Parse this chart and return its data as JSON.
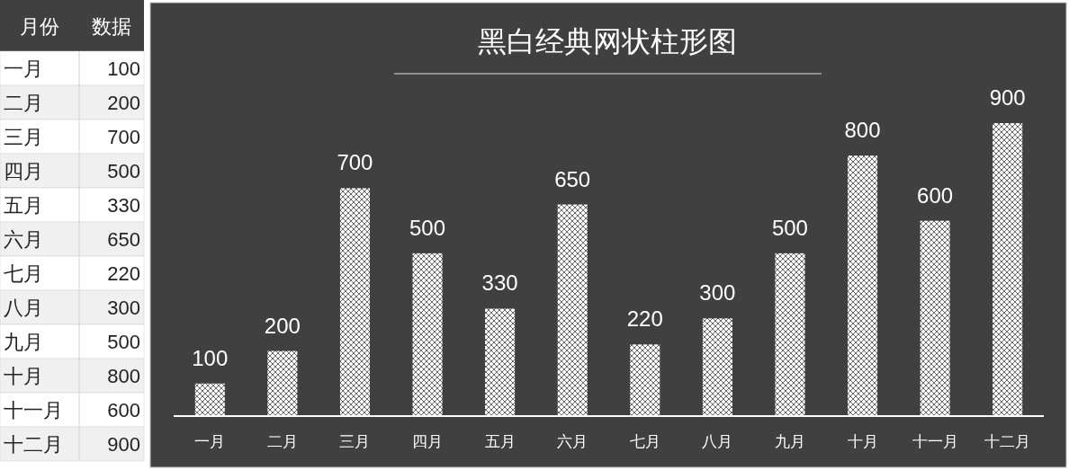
{
  "chart_data": [
    {
      "type": "other",
      "annotations": [
        "月份",
        "数据"
      ],
      "categories": [
        "一月",
        "二月",
        "三月",
        "四月",
        "五月",
        "六月",
        "七月",
        "八月",
        "九月",
        "十月",
        "十一月",
        "十二月"
      ],
      "values": [
        100,
        200,
        700,
        500,
        330,
        650,
        220,
        300,
        500,
        800,
        600,
        900
      ],
      "data_labels": true
    },
    {
      "type": "bar",
      "title": "黑白经典网状柱形图",
      "categories": [
        "一月",
        "二月",
        "三月",
        "四月",
        "五月",
        "六月",
        "七月",
        "八月",
        "九月",
        "十月",
        "十一月",
        "十二月"
      ],
      "values": [
        100,
        200,
        700,
        500,
        330,
        650,
        220,
        300,
        500,
        800,
        600,
        900
      ],
      "color": "#ffffff",
      "data_labels": true
    }
  ]
}
